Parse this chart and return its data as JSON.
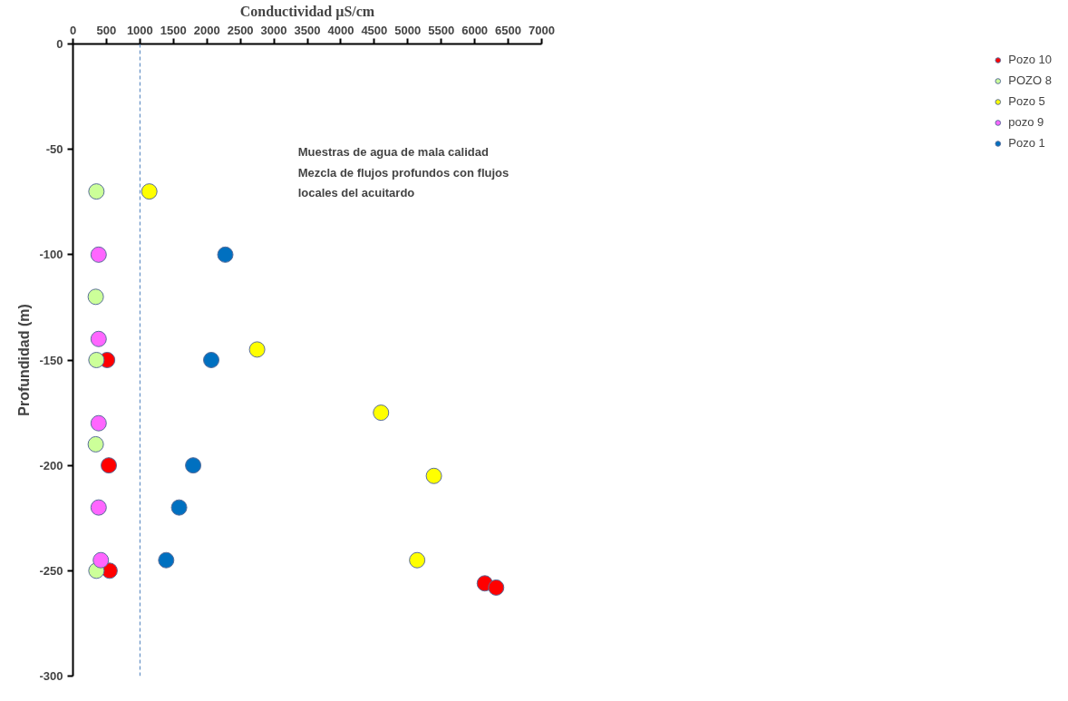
{
  "chart_data": {
    "type": "scatter",
    "xlabel": "Conductividad µS/cm",
    "ylabel": "Profundidad (m)",
    "xlim": [
      0,
      7000
    ],
    "xticks": [
      0,
      500,
      1000,
      1500,
      2000,
      2500,
      3000,
      3500,
      4000,
      4500,
      5000,
      5500,
      6000,
      6500,
      7000
    ],
    "ylim": [
      -300,
      0
    ],
    "yticks": [
      0,
      -50,
      -100,
      -150,
      -200,
      -250,
      -300
    ],
    "grid": false,
    "legend": "right",
    "marker": "circle",
    "series": [
      {
        "name": "Pozo 10",
        "color": "#ff0000",
        "x": [
          510,
          535,
          547,
          6150,
          6320
        ],
        "values": [
          -150,
          -200,
          -250,
          -256,
          -258
        ]
      },
      {
        "name": "POZO 8",
        "color": "#ccff99",
        "x": [
          350,
          340,
          350,
          340,
          350
        ],
        "values": [
          -70,
          -120,
          -150,
          -190,
          -250
        ]
      },
      {
        "name": "Pozo 5",
        "color": "#ffff00",
        "x": [
          1140,
          2750,
          4600,
          5390,
          5140
        ],
        "values": [
          -70,
          -145,
          -175,
          -205,
          -245
        ]
      },
      {
        "name": "pozo 9",
        "color": "#ff66ff",
        "x": [
          383,
          383,
          383,
          383,
          416
        ],
        "values": [
          -100,
          -140,
          -180,
          -220,
          -245
        ]
      },
      {
        "name": "Pozo 1",
        "color": "#0070c0",
        "x": [
          2275,
          2065,
          1795,
          1585,
          1392
        ],
        "values": [
          -100,
          -150,
          -200,
          -220,
          -245
        ]
      }
    ],
    "ref_lines": [
      {
        "axis": "x",
        "value": 1000,
        "color": "#4a7ebb",
        "line_style": "dashed"
      }
    ],
    "annotations": [
      "Muestras de agua de mala calidad\nMezcla de flujos profundos con flujos\nlocales del acuitardo"
    ]
  }
}
